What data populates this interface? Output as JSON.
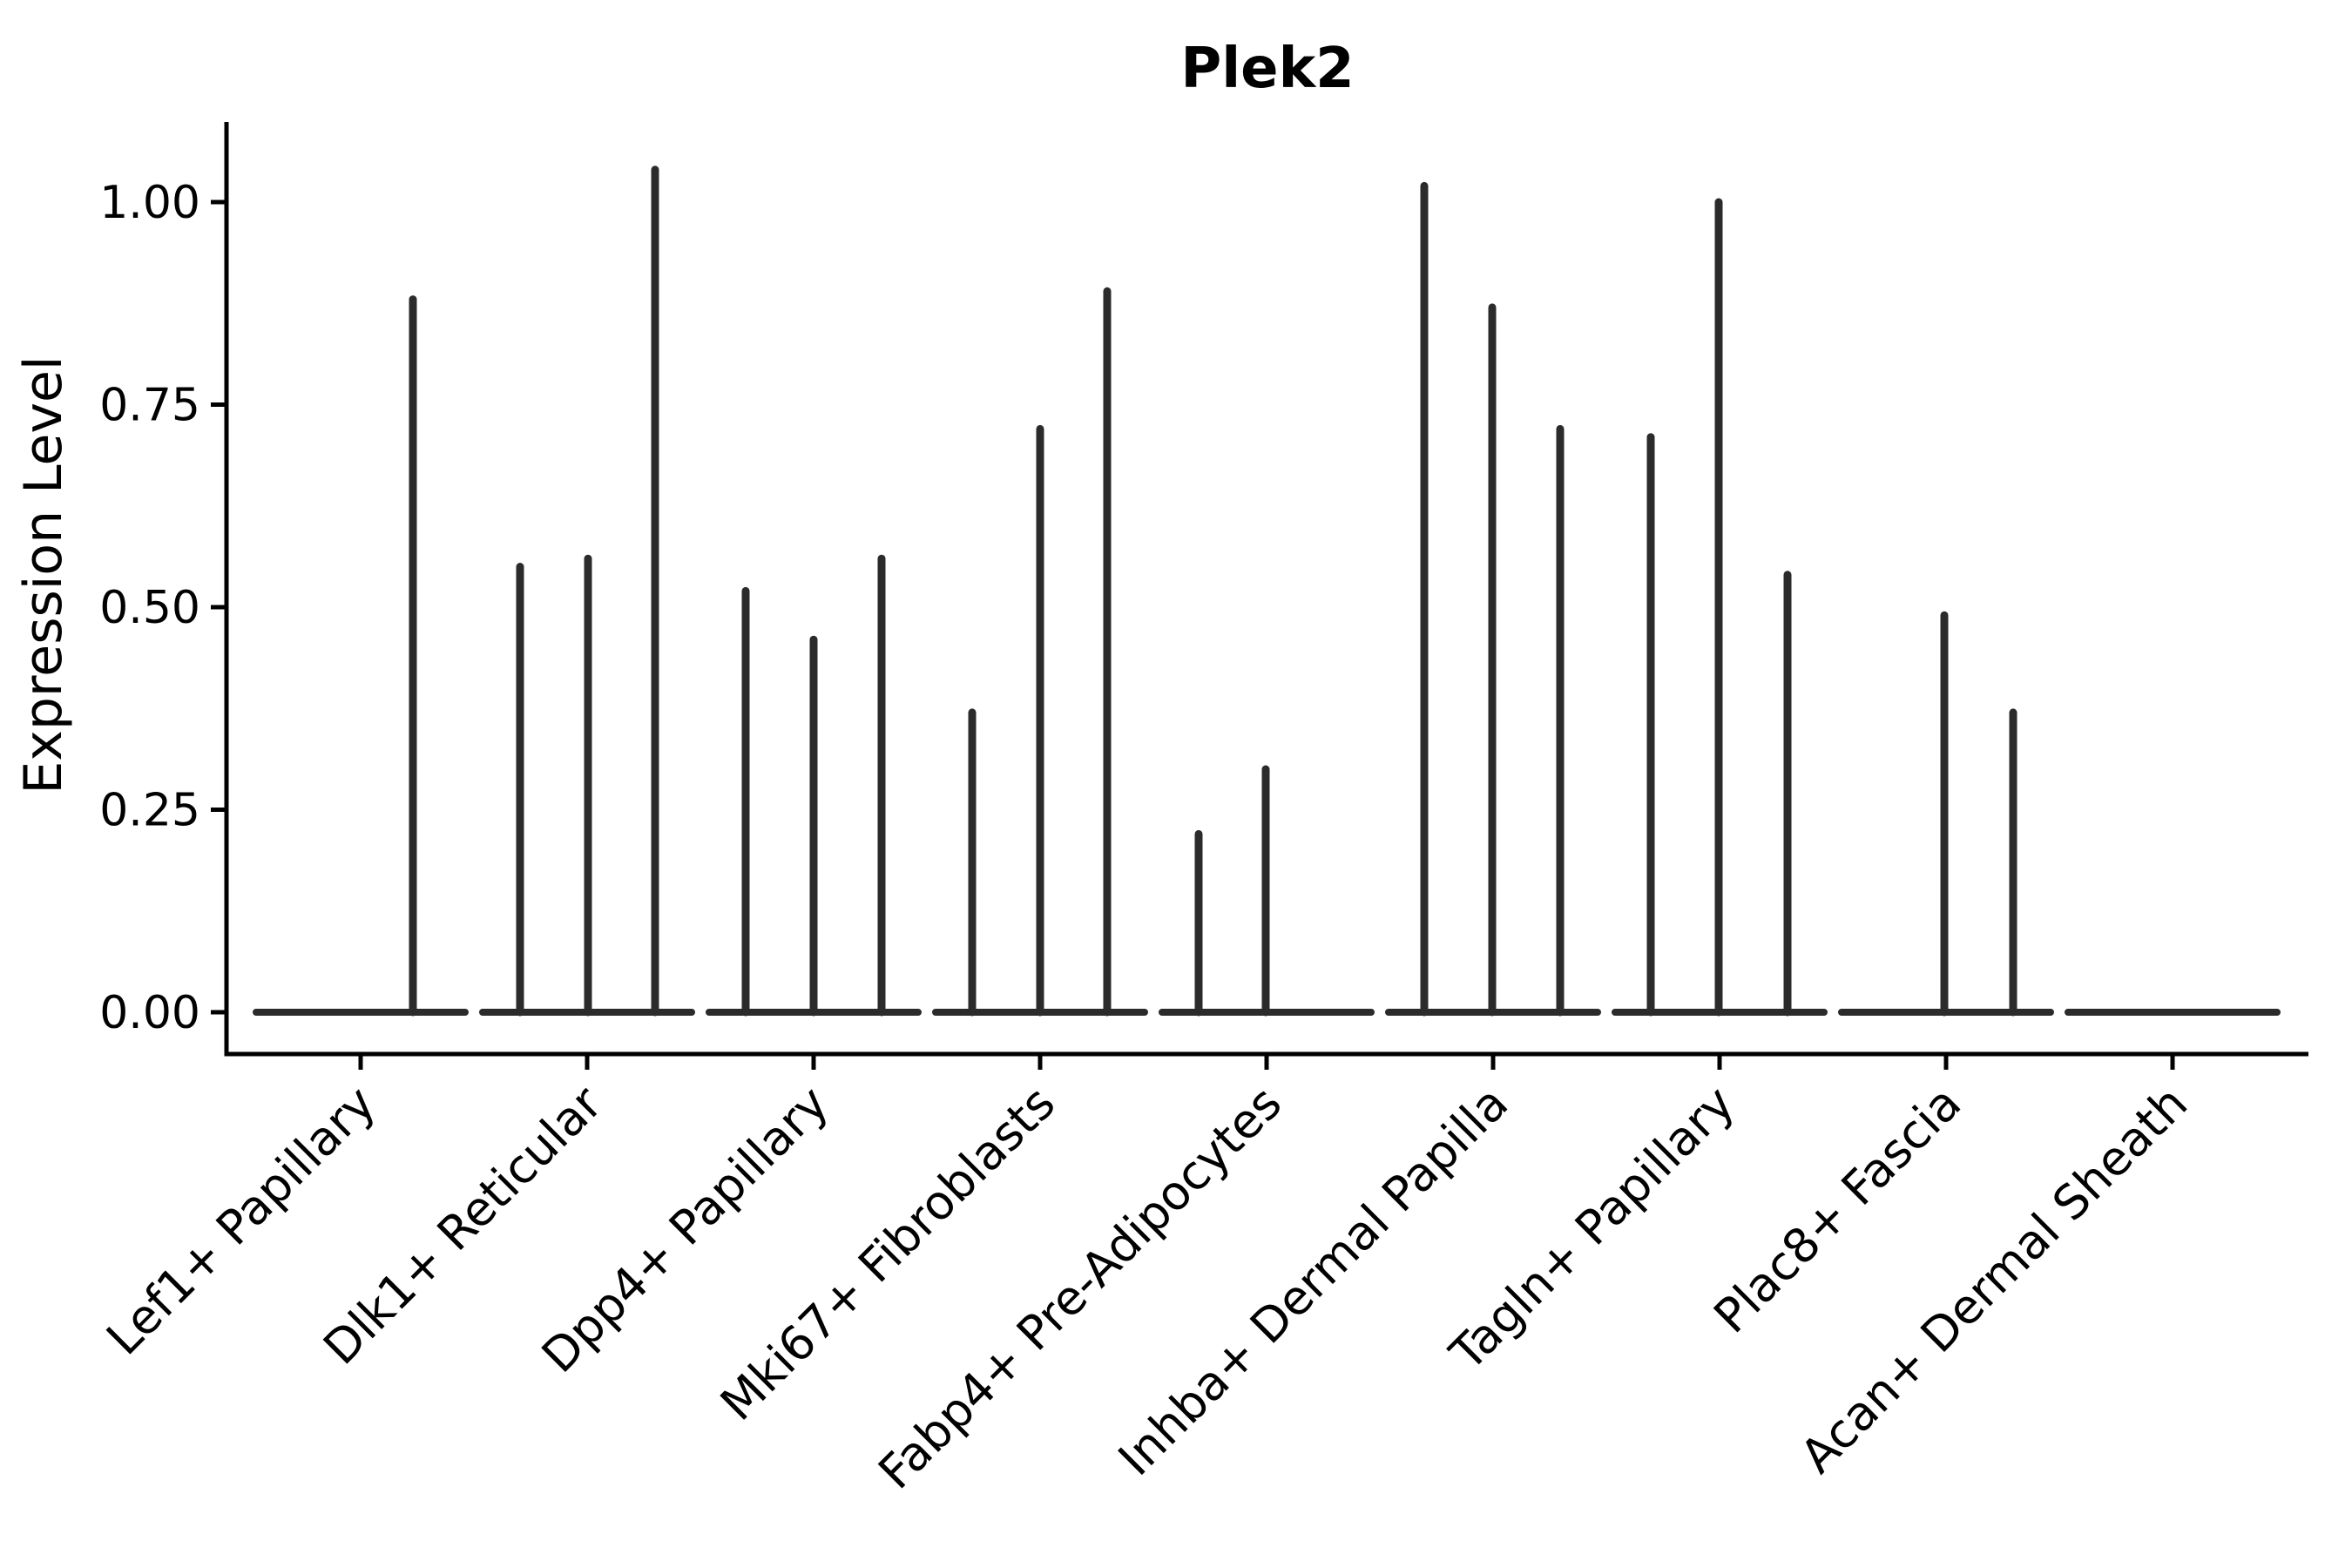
{
  "figure": {
    "background": "#ffffff",
    "axis_color": "#000000",
    "text_color": "#000000",
    "violin_color": "#2b2b2b"
  },
  "chart_data": {
    "type": "violin",
    "title": "Plek2",
    "xlabel": "",
    "ylabel": "Expression Level",
    "ylim": [
      0,
      1.1
    ],
    "yticks": [
      0.0,
      0.25,
      0.5,
      0.75,
      1.0
    ],
    "ytick_labels": [
      "0.00",
      "0.25",
      "0.50",
      "0.75",
      "1.00"
    ],
    "grid": false,
    "legend": "none",
    "categories": [
      "Lef1+ Papillary",
      "Dlk1+ Reticular",
      "Dpp4+ Papillary",
      "Mki67+ Fibroblasts",
      "Fabp4+ Pre-Adipocytes",
      "Inhba+ Dermal Papilla",
      "Tagln+ Papillary",
      "Plac8+ Fascia",
      "Acan+ Dermal Sheath"
    ],
    "groups": [
      {
        "category": "Lef1+ Papillary",
        "spikes": [
          {
            "offset": 60,
            "peak": 0.88
          }
        ]
      },
      {
        "category": "Dlk1+ Reticular",
        "spikes": [
          {
            "offset": -77,
            "peak": 0.55
          },
          {
            "offset": 1,
            "peak": 0.56
          },
          {
            "offset": 78,
            "peak": 1.04
          }
        ]
      },
      {
        "category": "Dpp4+ Papillary",
        "spikes": [
          {
            "offset": -78,
            "peak": 0.52
          },
          {
            "offset": 0,
            "peak": 0.46
          },
          {
            "offset": 78,
            "peak": 0.56
          }
        ]
      },
      {
        "category": "Mki67+ Fibroblasts",
        "spikes": [
          {
            "offset": -78,
            "peak": 0.37
          },
          {
            "offset": 0,
            "peak": 0.72
          },
          {
            "offset": 77,
            "peak": 0.89
          }
        ]
      },
      {
        "category": "Fabp4+ Pre-Adipocytes",
        "spikes": [
          {
            "offset": -78,
            "peak": 0.22
          },
          {
            "offset": -1,
            "peak": 0.3
          }
        ]
      },
      {
        "category": "Inhba+ Dermal Papilla",
        "spikes": [
          {
            "offset": -79,
            "peak": 1.02
          },
          {
            "offset": -1,
            "peak": 0.87
          },
          {
            "offset": 77,
            "peak": 0.72
          }
        ]
      },
      {
        "category": "Tagln+ Papillary",
        "spikes": [
          {
            "offset": -79,
            "peak": 0.71
          },
          {
            "offset": -1,
            "peak": 1.0
          },
          {
            "offset": 78,
            "peak": 0.54
          }
        ]
      },
      {
        "category": "Plac8+ Fascia",
        "spikes": [
          {
            "offset": -2,
            "peak": 0.49
          },
          {
            "offset": 77,
            "peak": 0.37
          }
        ]
      },
      {
        "category": "Acan+ Dermal Sheath",
        "spikes": []
      }
    ]
  }
}
